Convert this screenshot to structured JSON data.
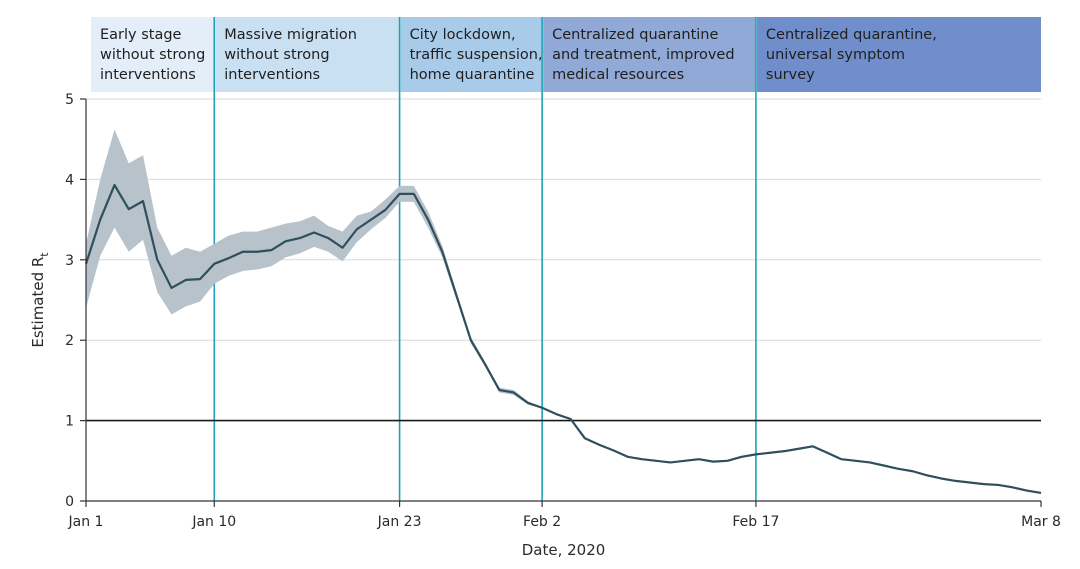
{
  "chart_data": {
    "type": "line",
    "xlabel": "Date, 2020",
    "ylabel": "Estimated R",
    "ylabel_subscript": "t",
    "ylim": [
      0,
      5
    ],
    "yticks": [
      0,
      1,
      2,
      3,
      4,
      5
    ],
    "xlim_days": [
      0,
      67
    ],
    "xticks": [
      {
        "day": 0,
        "label": "Jan 1"
      },
      {
        "day": 9,
        "label": "Jan 10"
      },
      {
        "day": 22,
        "label": "Jan 23"
      },
      {
        "day": 32,
        "label": "Feb 2"
      },
      {
        "day": 47,
        "label": "Feb 17"
      },
      {
        "day": 67,
        "label": "Mar 8"
      }
    ],
    "reference_line": 1,
    "phases": [
      {
        "start_day": 0,
        "end_day": 9,
        "lines": [
          "Early stage",
          "without strong",
          "interventions"
        ],
        "color": "#e3eef8"
      },
      {
        "start_day": 9,
        "end_day": 22,
        "lines": [
          "Massive migration",
          "without strong",
          "interventions"
        ],
        "color": "#c9dff2"
      },
      {
        "start_day": 22,
        "end_day": 32,
        "lines": [
          "City lockdown,",
          "traffic suspension,",
          "home quarantine"
        ],
        "color": "#a9cbea"
      },
      {
        "start_day": 32,
        "end_day": 47,
        "lines": [
          "Centralized quarantine",
          "and treatment, improved",
          "medical resources"
        ],
        "color": "#90a9d6"
      },
      {
        "start_day": 47,
        "end_day": 67,
        "lines": [
          "Centralized quarantine,",
          "universal symptom",
          "survey"
        ],
        "color": "#6f8ecb"
      }
    ],
    "series": [
      {
        "values": [
          [
            0,
            2.95
          ],
          [
            1,
            3.5
          ],
          [
            2,
            3.93
          ],
          [
            3,
            3.63
          ],
          [
            4,
            3.73
          ],
          [
            5,
            3.0
          ],
          [
            6,
            2.65
          ],
          [
            7,
            2.75
          ],
          [
            8,
            2.76
          ],
          [
            9,
            2.95
          ],
          [
            10,
            3.02
          ],
          [
            11,
            3.1
          ],
          [
            12,
            3.1
          ],
          [
            13,
            3.12
          ],
          [
            14,
            3.23
          ],
          [
            15,
            3.27
          ],
          [
            16,
            3.34
          ],
          [
            17,
            3.27
          ],
          [
            18,
            3.15
          ],
          [
            19,
            3.38
          ],
          [
            20,
            3.5
          ],
          [
            21,
            3.62
          ],
          [
            22,
            3.82
          ],
          [
            23,
            3.82
          ],
          [
            24,
            3.5
          ],
          [
            25,
            3.1
          ],
          [
            26,
            2.55
          ],
          [
            27,
            2.0
          ],
          [
            28,
            1.7
          ],
          [
            29,
            1.38
          ],
          [
            30,
            1.35
          ],
          [
            31,
            1.22
          ],
          [
            32,
            1.16
          ],
          [
            33,
            1.08
          ],
          [
            34,
            1.02
          ],
          [
            35,
            0.78
          ],
          [
            36,
            0.7
          ],
          [
            37,
            0.63
          ],
          [
            38,
            0.55
          ],
          [
            39,
            0.52
          ],
          [
            40,
            0.5
          ],
          [
            41,
            0.48
          ],
          [
            42,
            0.5
          ],
          [
            43,
            0.52
          ],
          [
            44,
            0.49
          ],
          [
            45,
            0.5
          ],
          [
            46,
            0.55
          ],
          [
            47,
            0.58
          ],
          [
            48,
            0.6
          ],
          [
            49,
            0.62
          ],
          [
            50,
            0.65
          ],
          [
            51,
            0.68
          ],
          [
            52,
            0.6
          ],
          [
            53,
            0.52
          ],
          [
            54,
            0.5
          ],
          [
            55,
            0.48
          ],
          [
            56,
            0.44
          ],
          [
            57,
            0.4
          ],
          [
            58,
            0.37
          ],
          [
            59,
            0.32
          ],
          [
            60,
            0.28
          ],
          [
            61,
            0.25
          ],
          [
            62,
            0.23
          ],
          [
            63,
            0.21
          ],
          [
            64,
            0.2
          ],
          [
            65,
            0.17
          ],
          [
            66,
            0.13
          ],
          [
            67,
            0.1
          ]
        ],
        "ci_upper": [
          [
            0,
            3.2
          ],
          [
            1,
            4.0
          ],
          [
            2,
            4.62
          ],
          [
            3,
            4.2
          ],
          [
            4,
            4.3
          ],
          [
            5,
            3.4
          ],
          [
            6,
            3.05
          ],
          [
            7,
            3.15
          ],
          [
            8,
            3.1
          ],
          [
            9,
            3.2
          ],
          [
            10,
            3.3
          ],
          [
            11,
            3.35
          ],
          [
            12,
            3.35
          ],
          [
            13,
            3.4
          ],
          [
            14,
            3.45
          ],
          [
            15,
            3.48
          ],
          [
            16,
            3.55
          ],
          [
            17,
            3.42
          ],
          [
            18,
            3.35
          ],
          [
            19,
            3.55
          ],
          [
            20,
            3.6
          ],
          [
            21,
            3.75
          ],
          [
            22,
            3.92
          ],
          [
            23,
            3.92
          ],
          [
            24,
            3.6
          ],
          [
            25,
            3.17
          ],
          [
            26,
            2.6
          ],
          [
            27,
            2.04
          ],
          [
            28,
            1.73
          ],
          [
            29,
            1.41
          ],
          [
            30,
            1.38
          ],
          [
            31,
            1.24
          ],
          [
            32,
            1.17
          ],
          [
            33,
            1.09
          ],
          [
            34,
            1.03
          ],
          [
            35,
            0.79
          ],
          [
            36,
            0.71
          ],
          [
            37,
            0.64
          ],
          [
            38,
            0.56
          ],
          [
            39,
            0.53
          ],
          [
            40,
            0.51
          ],
          [
            41,
            0.49
          ],
          [
            42,
            0.51
          ],
          [
            43,
            0.53
          ],
          [
            44,
            0.5
          ],
          [
            45,
            0.51
          ],
          [
            46,
            0.56
          ],
          [
            47,
            0.59
          ],
          [
            48,
            0.61
          ],
          [
            49,
            0.63
          ],
          [
            50,
            0.66
          ],
          [
            51,
            0.69
          ],
          [
            52,
            0.61
          ],
          [
            53,
            0.53
          ],
          [
            54,
            0.51
          ],
          [
            55,
            0.49
          ],
          [
            56,
            0.45
          ],
          [
            57,
            0.41
          ],
          [
            58,
            0.38
          ],
          [
            59,
            0.33
          ],
          [
            60,
            0.29
          ],
          [
            61,
            0.26
          ],
          [
            62,
            0.24
          ],
          [
            63,
            0.22
          ],
          [
            64,
            0.21
          ],
          [
            65,
            0.18
          ],
          [
            66,
            0.14
          ],
          [
            67,
            0.11
          ]
        ],
        "ci_lower": [
          [
            0,
            2.4
          ],
          [
            1,
            3.05
          ],
          [
            2,
            3.4
          ],
          [
            3,
            3.1
          ],
          [
            4,
            3.25
          ],
          [
            5,
            2.6
          ],
          [
            6,
            2.32
          ],
          [
            7,
            2.42
          ],
          [
            8,
            2.48
          ],
          [
            9,
            2.7
          ],
          [
            10,
            2.8
          ],
          [
            11,
            2.86
          ],
          [
            12,
            2.88
          ],
          [
            13,
            2.92
          ],
          [
            14,
            3.03
          ],
          [
            15,
            3.08
          ],
          [
            16,
            3.16
          ],
          [
            17,
            3.1
          ],
          [
            18,
            2.98
          ],
          [
            19,
            3.22
          ],
          [
            20,
            3.38
          ],
          [
            21,
            3.52
          ],
          [
            22,
            3.72
          ],
          [
            23,
            3.72
          ],
          [
            24,
            3.4
          ],
          [
            25,
            3.03
          ],
          [
            26,
            2.5
          ],
          [
            27,
            1.96
          ],
          [
            28,
            1.67
          ],
          [
            29,
            1.35
          ],
          [
            30,
            1.32
          ],
          [
            31,
            1.2
          ],
          [
            32,
            1.15
          ],
          [
            33,
            1.07
          ],
          [
            34,
            1.01
          ],
          [
            35,
            0.77
          ],
          [
            36,
            0.69
          ],
          [
            37,
            0.62
          ],
          [
            38,
            0.54
          ],
          [
            39,
            0.51
          ],
          [
            40,
            0.49
          ],
          [
            41,
            0.47
          ],
          [
            42,
            0.49
          ],
          [
            43,
            0.51
          ],
          [
            44,
            0.48
          ],
          [
            45,
            0.49
          ],
          [
            46,
            0.54
          ],
          [
            47,
            0.57
          ],
          [
            48,
            0.59
          ],
          [
            49,
            0.61
          ],
          [
            50,
            0.64
          ],
          [
            51,
            0.67
          ],
          [
            52,
            0.59
          ],
          [
            53,
            0.51
          ],
          [
            54,
            0.49
          ],
          [
            55,
            0.47
          ],
          [
            56,
            0.43
          ],
          [
            57,
            0.39
          ],
          [
            58,
            0.36
          ],
          [
            59,
            0.31
          ],
          [
            60,
            0.27
          ],
          [
            61,
            0.24
          ],
          [
            62,
            0.22
          ],
          [
            63,
            0.2
          ],
          [
            64,
            0.19
          ],
          [
            65,
            0.16
          ],
          [
            66,
            0.12
          ],
          [
            67,
            0.09
          ]
        ]
      }
    ],
    "colors": {
      "line": "#2f4f5c",
      "ci_band": "#b7c2cb",
      "phase_divider": "#1ba3b4",
      "reference_line": "#1a1a1a",
      "grid": "#d9d9d9",
      "axis": "#333333"
    }
  }
}
